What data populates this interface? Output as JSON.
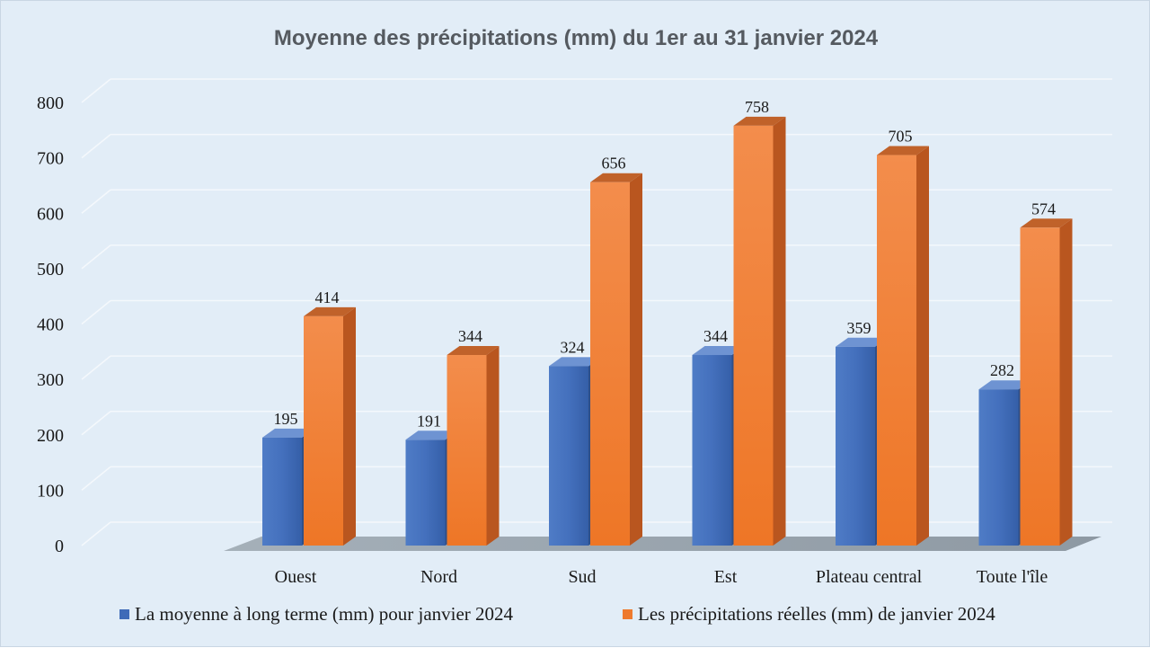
{
  "chart_data": {
    "type": "bar",
    "title": "Moyenne des précipitations (mm) du 1er au 31 janvier 2024",
    "categories": [
      "Ouest",
      "Nord",
      "Sud",
      "Est",
      "Plateau central",
      "Toute l'île"
    ],
    "series": [
      {
        "name": "La moyenne à long terme (mm) pour janvier 2024",
        "color": "#3f6bb8",
        "values": [
          195,
          191,
          324,
          344,
          359,
          282
        ]
      },
      {
        "name": "Les précipitations réelles (mm) de janvier 2024",
        "color": "#ee7a2e",
        "values": [
          414,
          344,
          656,
          758,
          705,
          574
        ]
      }
    ],
    "y_ticks": [
      "0",
      "100",
      "200",
      "300",
      "400",
      "500",
      "600",
      "700",
      "800"
    ],
    "ylim": [
      0,
      800
    ],
    "grid": true,
    "legend_position": "bottom",
    "xlabel": "",
    "ylabel": ""
  }
}
